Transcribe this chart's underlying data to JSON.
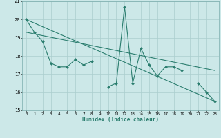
{
  "xlabel": "Humidex (Indice chaleur)",
  "x": [
    0,
    1,
    2,
    3,
    4,
    5,
    6,
    7,
    8,
    9,
    10,
    11,
    12,
    13,
    14,
    15,
    16,
    17,
    18,
    19,
    20,
    21,
    22,
    23
  ],
  "line1": [
    20.0,
    19.3,
    18.8,
    17.6,
    17.4,
    17.4,
    17.8,
    17.5,
    17.7,
    null,
    16.3,
    16.5,
    20.7,
    16.5,
    18.4,
    17.5,
    16.9,
    17.4,
    17.4,
    17.2,
    null,
    16.5,
    16.0,
    15.5
  ],
  "line2_x": [
    0,
    23
  ],
  "line2_y": [
    20.0,
    15.5
  ],
  "line3_x": [
    0,
    23
  ],
  "line3_y": [
    19.3,
    17.2
  ],
  "line_color": "#2a7d6e",
  "bg_color": "#cce8e8",
  "grid_color": "#aacece",
  "ylim": [
    15,
    21
  ],
  "xlim": [
    -0.5,
    23.5
  ],
  "yticks": [
    15,
    16,
    17,
    18,
    19,
    20,
    21
  ],
  "xticks": [
    0,
    1,
    2,
    3,
    4,
    5,
    6,
    7,
    8,
    9,
    10,
    11,
    12,
    13,
    14,
    15,
    16,
    17,
    18,
    19,
    20,
    21,
    22,
    23
  ]
}
